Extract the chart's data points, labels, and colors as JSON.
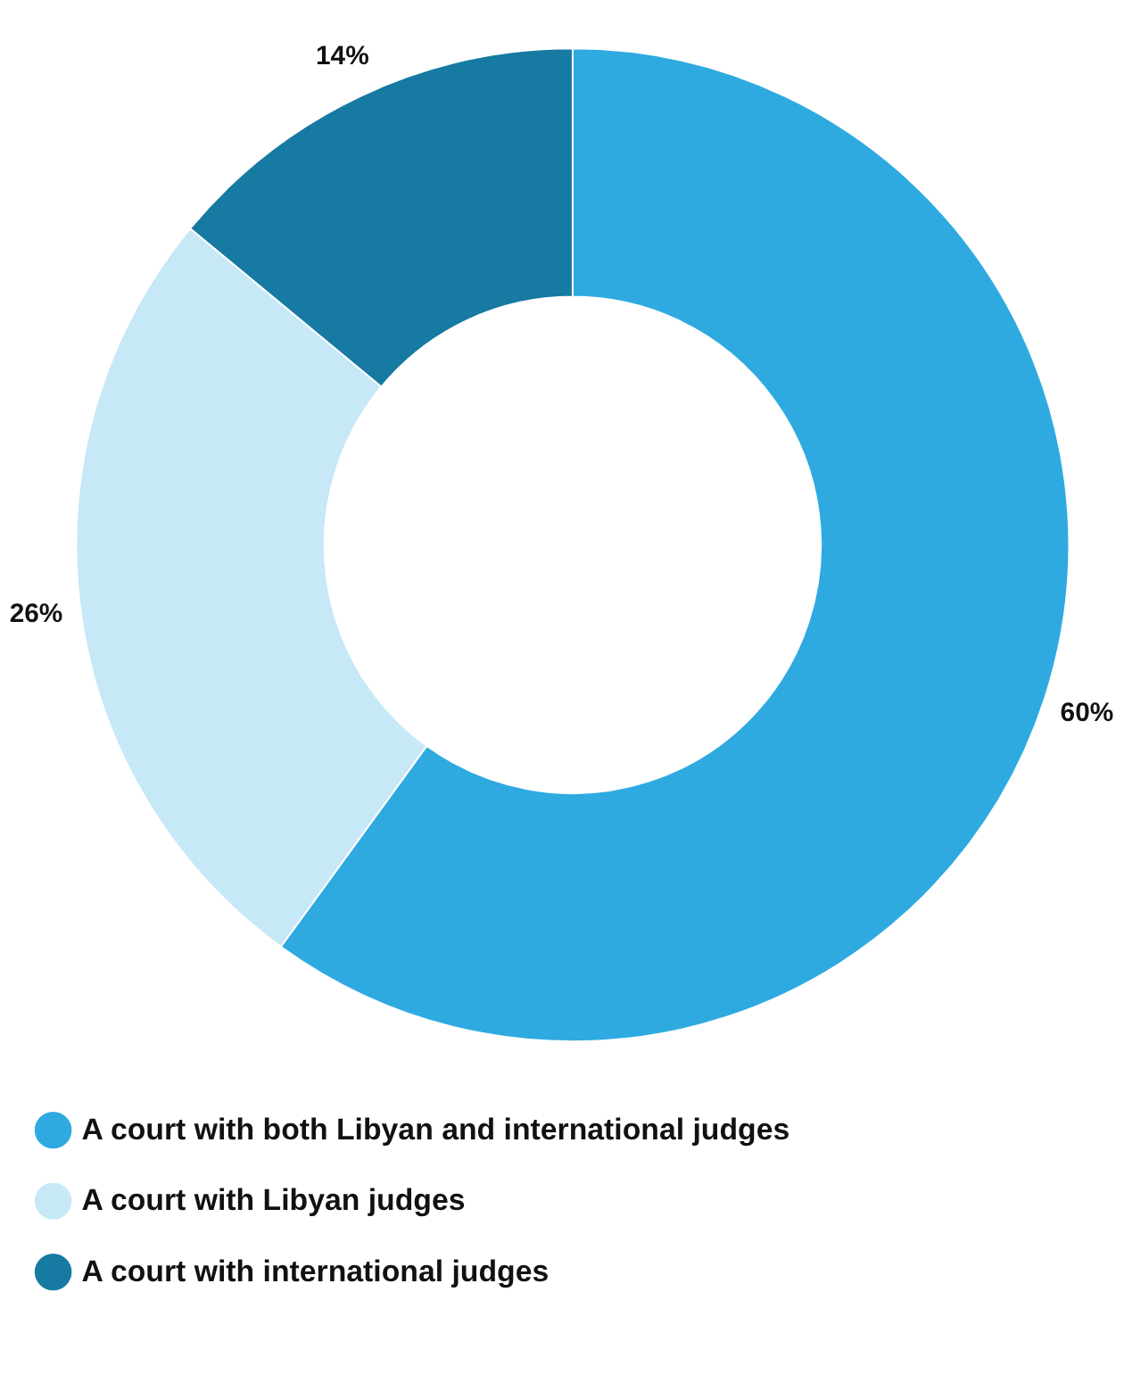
{
  "chart_data": {
    "type": "donut",
    "categories": [
      "A court with both Libyan and international judges",
      "A court with Libyan judges",
      "A court with international judges"
    ],
    "values": [
      60,
      26,
      14
    ],
    "colors": [
      "#2eaae1",
      "#c6e8f7",
      "#167aa2"
    ],
    "value_labels": [
      "60%",
      "26%",
      "14%"
    ],
    "legend": "bottom"
  }
}
